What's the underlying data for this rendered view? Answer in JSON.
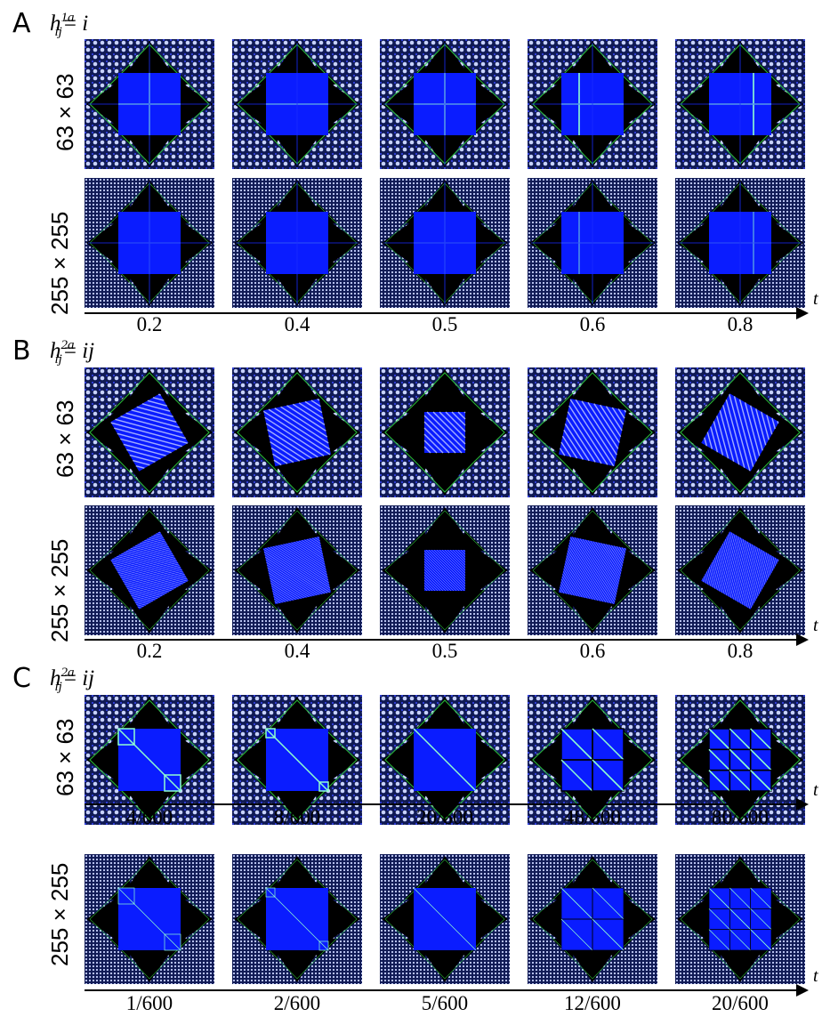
{
  "sections": [
    {
      "letter": "A",
      "formula": {
        "h": "h",
        "sup": "1a",
        "sub": "ij",
        "rhs": "i"
      },
      "rows": [
        {
          "label": "63 × 63",
          "style": "coarse",
          "pattern": "cross",
          "ticks": []
        },
        {
          "label": "255 × 255",
          "style": "fine",
          "pattern": "cross",
          "axis_label": "t",
          "ticks": [
            "0.2",
            "0.4",
            "0.5",
            "0.6",
            "0.8"
          ]
        }
      ]
    },
    {
      "letter": "B",
      "formula": {
        "h": "h",
        "sup": "2a",
        "sub": "ij",
        "rhs": "ij"
      },
      "rows": [
        {
          "label": "63 × 63",
          "style": "coarse",
          "pattern": "rotate",
          "ticks": []
        },
        {
          "label": "255 × 255",
          "style": "fine",
          "pattern": "rotate",
          "axis_label": "t",
          "ticks": [
            "0.2",
            "0.4",
            "0.5",
            "0.6",
            "0.8"
          ]
        }
      ]
    },
    {
      "letter": "C",
      "formula": {
        "h": "h",
        "sup": "2a",
        "sub": "ij",
        "rhs": "ij"
      },
      "rows": [
        {
          "label": "63 × 63",
          "style": "coarse",
          "pattern": "diag",
          "axis_label": "t",
          "ticks": [
            "4/600",
            "8/600",
            "20/600",
            "48/600",
            "80/600"
          ]
        },
        {
          "label": "255 × 255",
          "style": "fine",
          "pattern": "diag",
          "axis_label": "t",
          "ticks": [
            "1/600",
            "2/600",
            "5/600",
            "12/600",
            "20/600"
          ]
        }
      ]
    }
  ],
  "colors": {
    "background": "#000000",
    "region": "#0a1cff",
    "fractal": "#3a49ff",
    "accent_green": "#2ecc40",
    "line": "#8fffd0"
  }
}
